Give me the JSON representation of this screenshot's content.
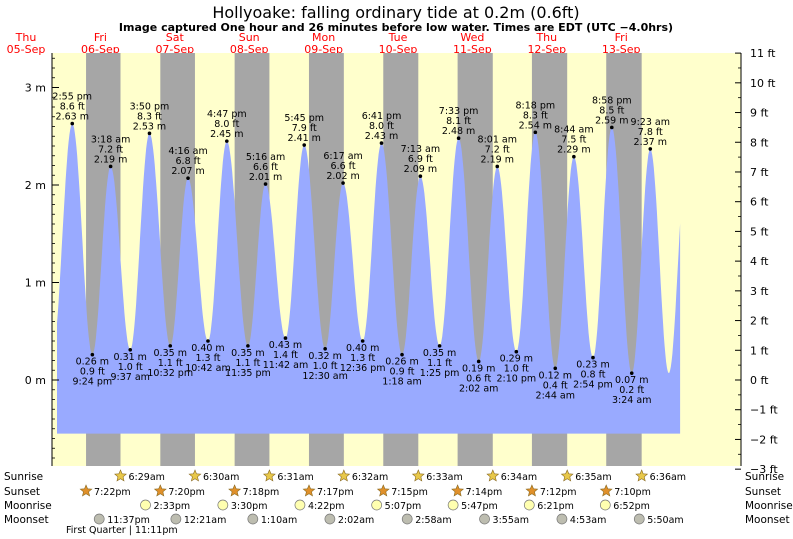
{
  "header": {
    "title": "Hollyoake: falling  ordinary tide at 0.2m (0.6ft)",
    "subtitle": "Image captured One hour and 26 minutes before low water. Times are EDT (UTC −4.0hrs)"
  },
  "colors": {
    "day_bg": "#ffffcc",
    "night_bg": "#a6a6a6",
    "tide_fill": "#99aaff",
    "day_label": "#ff0000",
    "sun_star": "#e8c84a",
    "sunset_star": "#e0902a",
    "moon_disc": "#ffffb0",
    "moonset_disc": "#bdbdb0"
  },
  "days": [
    {
      "dow": "Thu",
      "date": "05-Sep"
    },
    {
      "dow": "Fri",
      "date": "06-Sep"
    },
    {
      "dow": "Sat",
      "date": "07-Sep"
    },
    {
      "dow": "Sun",
      "date": "08-Sep"
    },
    {
      "dow": "Mon",
      "date": "09-Sep"
    },
    {
      "dow": "Tue",
      "date": "10-Sep"
    },
    {
      "dow": "Wed",
      "date": "11-Sep"
    },
    {
      "dow": "Thu",
      "date": "12-Sep"
    },
    {
      "dow": "Fri",
      "date": "13-Sep"
    }
  ],
  "chart_data": {
    "type": "area",
    "title": "Hollyoake: falling  ordinary tide at 0.2m (0.6ft)",
    "x_unit": "hours since 05-Sep 00:00 EDT",
    "left_axis": {
      "unit": "m",
      "ticks": [
        "0 m",
        "1 m",
        "2 m",
        "3 m"
      ],
      "values": [
        0,
        1,
        2,
        3
      ]
    },
    "right_axis": {
      "unit": "ft",
      "ticks": [
        "−3 ft",
        "−2 ft",
        "−1 ft",
        "0 ft",
        "1 ft",
        "2 ft",
        "3 ft",
        "4 ft",
        "5 ft",
        "6 ft",
        "7 ft",
        "8 ft",
        "9 ft",
        "10 ft",
        "11 ft"
      ],
      "values": [
        -3,
        -2,
        -1,
        0,
        1,
        2,
        3,
        4,
        5,
        6,
        7,
        8,
        9,
        10,
        11
      ]
    },
    "ylim_m": [
      -0.914,
      3.353
    ],
    "xlim_hours": [
      0,
      216
    ],
    "tide_range_hours": [
      10,
      211
    ],
    "high_tides_big": [
      {
        "time": "2:55 pm",
        "ft": "8.6 ft",
        "m": "2.63 m",
        "t": 14.92,
        "h": 2.63
      },
      {
        "time": "3:50 pm",
        "ft": "8.3 ft",
        "m": "2.53 m",
        "t": 39.83,
        "h": 2.53
      },
      {
        "time": "4:47 pm",
        "ft": "8.0 ft",
        "m": "2.45 m",
        "t": 64.78,
        "h": 2.45
      },
      {
        "time": "5:45 pm",
        "ft": "7.9 ft",
        "m": "2.41 m",
        "t": 89.75,
        "h": 2.41
      },
      {
        "time": "6:41 pm",
        "ft": "8.0 ft",
        "m": "2.43 m",
        "t": 114.68,
        "h": 2.43
      },
      {
        "time": "7:33 pm",
        "ft": "8.1 ft",
        "m": "2.48 m",
        "t": 139.55,
        "h": 2.48
      },
      {
        "time": "8:18 pm",
        "ft": "8.3 ft",
        "m": "2.54 m",
        "t": 164.3,
        "h": 2.54
      },
      {
        "time": "8:58 pm",
        "ft": "8.5 ft",
        "m": "2.59 m",
        "t": 188.97,
        "h": 2.59
      }
    ],
    "high_tides_small": [
      {
        "time": "3:18 am",
        "ft": "7.2 ft",
        "m": "2.19 m",
        "t": 27.3,
        "h": 2.19
      },
      {
        "time": "4:16 am",
        "ft": "6.8 ft",
        "m": "2.07 m",
        "t": 52.27,
        "h": 2.07
      },
      {
        "time": "5:16 am",
        "ft": "6.6 ft",
        "m": "2.01 m",
        "t": 77.27,
        "h": 2.01
      },
      {
        "time": "6:17 am",
        "ft": "6.6 ft",
        "m": "2.02 m",
        "t": 102.28,
        "h": 2.02
      },
      {
        "time": "7:13 am",
        "ft": "6.9 ft",
        "m": "2.09 m",
        "t": 127.22,
        "h": 2.09
      },
      {
        "time": "8:01 am",
        "ft": "7.2 ft",
        "m": "2.19 m",
        "t": 152.02,
        "h": 2.19
      },
      {
        "time": "8:44 am",
        "ft": "7.5 ft",
        "m": "2.29 m",
        "t": 176.73,
        "h": 2.29
      },
      {
        "time": "9:23 am",
        "ft": "7.8 ft",
        "m": "2.37 m",
        "t": 201.38,
        "h": 2.37
      }
    ],
    "low_tides": [
      {
        "time": "9:24 pm",
        "ft": "0.9 ft",
        "m": "0.26 m",
        "t": 21.4,
        "h": 0.26
      },
      {
        "time": "9:37 am",
        "ft": "1.0 ft",
        "m": "0.31 m",
        "t": 33.62,
        "h": 0.31
      },
      {
        "time": "10:32 pm",
        "ft": "1.1 ft",
        "m": "0.35 m",
        "t": 46.53,
        "h": 0.35
      },
      {
        "time": "10:42 am",
        "ft": "1.3 ft",
        "m": "0.40 m",
        "t": 58.7,
        "h": 0.4
      },
      {
        "time": "11:35 pm",
        "ft": "1.1 ft",
        "m": "0.35 m",
        "t": 71.58,
        "h": 0.35
      },
      {
        "time": "11:42 am",
        "ft": "1.4 ft",
        "m": "0.43 m",
        "t": 83.7,
        "h": 0.43
      },
      {
        "time": "12:30 am",
        "ft": "1.0 ft",
        "m": "0.32 m",
        "t": 96.5,
        "h": 0.32
      },
      {
        "time": "12:36 pm",
        "ft": "1.3 ft",
        "m": "0.40 m",
        "t": 108.6,
        "h": 0.4
      },
      {
        "time": "1:18 am",
        "ft": "0.9 ft",
        "m": "0.26 m",
        "t": 121.3,
        "h": 0.26
      },
      {
        "time": "1:25 pm",
        "ft": "1.1 ft",
        "m": "0.35 m",
        "t": 133.42,
        "h": 0.35
      },
      {
        "time": "2:02 am",
        "ft": "0.6 ft",
        "m": "0.19 m",
        "t": 146.03,
        "h": 0.19
      },
      {
        "time": "2:10 pm",
        "ft": "1.0 ft",
        "m": "0.29 m",
        "t": 158.17,
        "h": 0.29
      },
      {
        "time": "2:44 am",
        "ft": "0.4 ft",
        "m": "0.12 m",
        "t": 170.73,
        "h": 0.12
      },
      {
        "time": "2:54 pm",
        "ft": "0.8 ft",
        "m": "0.23 m",
        "t": 182.9,
        "h": 0.23
      },
      {
        "time": "3:24 am",
        "ft": "0.2 ft",
        "m": "0.07 m",
        "t": 195.4,
        "h": 0.07
      }
    ],
    "sun_events": {
      "sunrise_label": "Sunrise",
      "sunset_label": "Sunset",
      "sunrise": [
        {
          "t": 30.48,
          "time": "6:29am"
        },
        {
          "t": 54.5,
          "time": "6:30am"
        },
        {
          "t": 78.52,
          "time": "6:31am"
        },
        {
          "t": 102.53,
          "time": "6:32am"
        },
        {
          "t": 126.55,
          "time": "6:33am"
        },
        {
          "t": 150.57,
          "time": "6:34am"
        },
        {
          "t": 174.58,
          "time": "6:35am"
        },
        {
          "t": 198.6,
          "time": "6:36am"
        }
      ],
      "sunset": [
        {
          "t": 19.37,
          "time": "7:22pm"
        },
        {
          "t": 43.33,
          "time": "7:20pm"
        },
        {
          "t": 67.3,
          "time": "7:18pm"
        },
        {
          "t": 91.28,
          "time": "7:17pm"
        },
        {
          "t": 115.25,
          "time": "7:15pm"
        },
        {
          "t": 139.23,
          "time": "7:14pm"
        },
        {
          "t": 163.2,
          "time": "7:12pm"
        },
        {
          "t": 187.17,
          "time": "7:10pm"
        }
      ]
    },
    "moon_events": {
      "moonrise_label": "Moonrise",
      "moonset_label": "Moonset",
      "moonrise": [
        {
          "t": 38.55,
          "time": "2:33pm"
        },
        {
          "t": 63.5,
          "time": "3:30pm"
        },
        {
          "t": 88.37,
          "time": "4:22pm"
        },
        {
          "t": 113.12,
          "time": "5:07pm"
        },
        {
          "t": 137.78,
          "time": "5:47pm"
        },
        {
          "t": 162.35,
          "time": "6:21pm"
        },
        {
          "t": 186.87,
          "time": "6:52pm"
        }
      ],
      "moonset": [
        {
          "t": 23.62,
          "time": "11:37pm"
        },
        {
          "t": 48.35,
          "time": "12:21am"
        },
        {
          "t": 73.17,
          "time": "1:10am"
        },
        {
          "t": 98.03,
          "time": "2:02am"
        },
        {
          "t": 122.97,
          "time": "2:58am"
        },
        {
          "t": 147.92,
          "time": "3:55am"
        },
        {
          "t": 172.88,
          "time": "4:53am"
        },
        {
          "t": 197.83,
          "time": "5:50am"
        }
      ]
    },
    "phase_note": "First Quarter | 11:11pm"
  }
}
